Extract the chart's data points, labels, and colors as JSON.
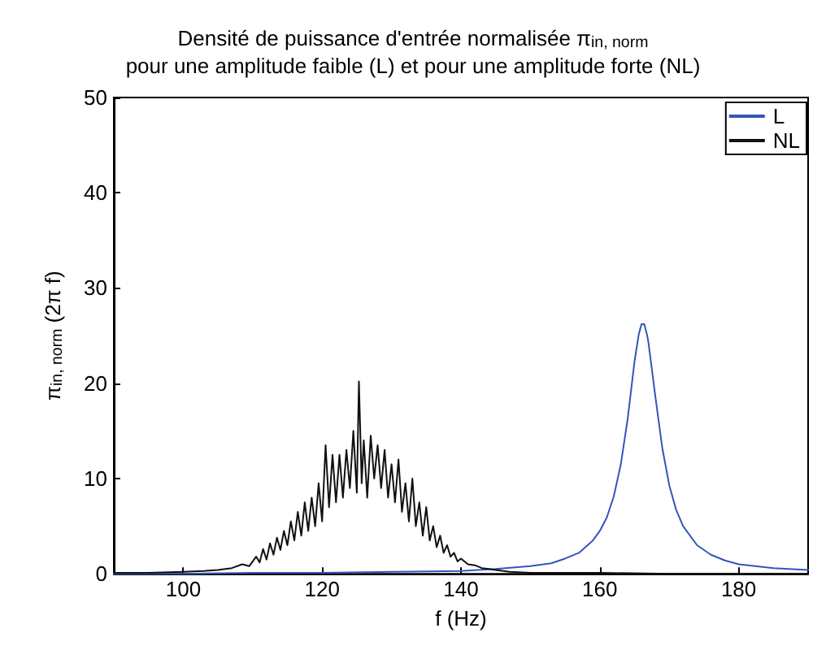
{
  "chart_data": {
    "type": "line",
    "title": "Densité de puissance d'entrée normalisée π$_{in, norm}$",
    "subtitle": "pour une amplitude faible (L) et pour une amplitude forte (NL)",
    "xlabel": "f (Hz)",
    "ylabel": "π$_{in, norm}$ (2π f)",
    "xlim": [
      90,
      190
    ],
    "xticks": [
      100,
      120,
      140,
      160,
      180
    ],
    "ylim": [
      0,
      50
    ],
    "yticks": [
      0,
      10,
      20,
      30,
      40,
      50
    ],
    "grid": false,
    "legend": "top right",
    "marker": "none",
    "line_style": "solid",
    "series": [
      {
        "name": "L",
        "color": "#3355bb",
        "x": [
          90,
          100,
          110,
          120,
          130,
          140,
          145,
          150,
          153,
          155,
          157,
          159,
          160,
          161,
          162,
          163,
          164,
          165,
          165.6,
          166,
          166.4,
          166.8,
          167,
          168,
          169,
          170,
          171,
          172,
          174,
          176,
          178,
          180,
          185,
          190
        ],
        "values": [
          0,
          0,
          0.1,
          0.1,
          0.2,
          0.3,
          0.5,
          0.8,
          1.1,
          1.6,
          2.2,
          3.5,
          4.5,
          5.9,
          8.1,
          11.4,
          16.2,
          22.3,
          25.1,
          26.2,
          26.2,
          25.1,
          24.3,
          18.6,
          13.2,
          9.3,
          6.7,
          5.0,
          3.0,
          2.0,
          1.4,
          1.0,
          0.6,
          0.4
        ]
      },
      {
        "name": "NL",
        "color": "#111111",
        "x": [
          90,
          95,
          100,
          103,
          105,
          107,
          108.5,
          109.5,
          110.5,
          111,
          111.5,
          112,
          112.5,
          113,
          113.5,
          114,
          114.5,
          115,
          115.5,
          116,
          116.5,
          117,
          117.5,
          118,
          118.5,
          119,
          119.5,
          120,
          120.5,
          121,
          121.5,
          122,
          122.5,
          123,
          123.5,
          124,
          124.5,
          125,
          125.3,
          125.7,
          126,
          126.5,
          127,
          127.5,
          128,
          128.5,
          129,
          129.5,
          130,
          130.5,
          131,
          131.5,
          132,
          132.5,
          133,
          133.5,
          134,
          134.5,
          135,
          135.5,
          136,
          136.5,
          137,
          137.5,
          138,
          138.5,
          139,
          139.5,
          140,
          141,
          142,
          143,
          144,
          145,
          147,
          150,
          160,
          170,
          190
        ],
        "values": [
          0.1,
          0.1,
          0.2,
          0.3,
          0.4,
          0.6,
          1.0,
          0.8,
          1.8,
          1.2,
          2.6,
          1.5,
          3.2,
          2.0,
          3.8,
          2.5,
          4.5,
          3.0,
          5.5,
          3.5,
          6.5,
          4.0,
          7.5,
          4.5,
          8.0,
          5.0,
          9.5,
          5.5,
          13.5,
          7.0,
          12.5,
          7.5,
          12.5,
          8.0,
          13.0,
          9.0,
          15.0,
          8.5,
          20.2,
          9.5,
          14.0,
          8.0,
          14.5,
          10.0,
          13.5,
          9.0,
          13.0,
          8.0,
          11.5,
          7.5,
          12.0,
          6.5,
          9.5,
          5.5,
          10.0,
          5.0,
          7.5,
          4.0,
          7.0,
          3.5,
          5.0,
          2.8,
          4.0,
          2.2,
          3.0,
          1.8,
          2.2,
          1.3,
          1.6,
          1.0,
          0.9,
          0.6,
          0.5,
          0.4,
          0.2,
          0.1,
          0.1,
          0,
          0
        ]
      }
    ]
  }
}
